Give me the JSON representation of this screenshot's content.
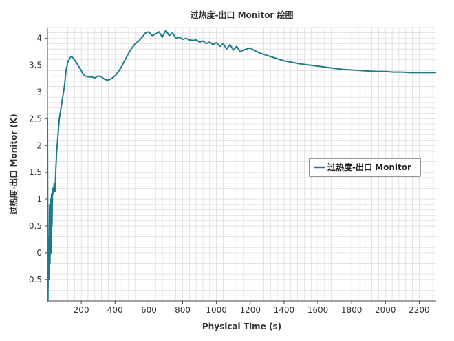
{
  "chart_data": {
    "type": "line",
    "title": "过热度-出口 Monitor 绘图",
    "xlabel": "Physical Time (s)",
    "ylabel": "过热度-出口 Monitor (K)",
    "xlim": [
      0,
      2300
    ],
    "ylim": [
      -0.9,
      4.2
    ],
    "x_ticks": [
      200,
      400,
      600,
      800,
      1000,
      1200,
      1400,
      1600,
      1800,
      2000,
      2200
    ],
    "x_tick_labels": [
      "200",
      "400",
      "600",
      "800",
      "1000",
      "1200",
      "1400",
      "1600",
      "1800",
      "2000",
      "2200"
    ],
    "y_ticks": [
      -0.5,
      0,
      0.5,
      1,
      1.5,
      2,
      2.5,
      3,
      3.5,
      4
    ],
    "y_tick_labels": [
      "-0.5",
      "0",
      "0.5",
      "1",
      "1.5",
      "2",
      "2.5",
      "3",
      "3.5",
      "4"
    ],
    "grid": true,
    "legend_position": "right",
    "colors": {
      "series": "#1f7a8c",
      "grid": "#d9d9d9",
      "axis": "#444444"
    },
    "series": [
      {
        "name": "过热度-出口 Monitor",
        "x": [
          0,
          3,
          6,
          9,
          12,
          15,
          18,
          21,
          24,
          27,
          30,
          35,
          40,
          45,
          50,
          55,
          60,
          65,
          70,
          80,
          90,
          100,
          110,
          120,
          130,
          140,
          150,
          160,
          170,
          180,
          190,
          200,
          210,
          220,
          240,
          260,
          280,
          300,
          320,
          340,
          360,
          380,
          400,
          420,
          440,
          460,
          480,
          500,
          520,
          540,
          560,
          580,
          600,
          620,
          640,
          660,
          680,
          700,
          720,
          740,
          760,
          780,
          800,
          820,
          840,
          860,
          880,
          900,
          920,
          940,
          960,
          980,
          1000,
          1020,
          1040,
          1060,
          1080,
          1100,
          1120,
          1140,
          1160,
          1180,
          1200,
          1220,
          1240,
          1260,
          1280,
          1300,
          1350,
          1400,
          1450,
          1500,
          1550,
          1600,
          1650,
          1700,
          1750,
          1800,
          1850,
          1900,
          1950,
          2000,
          2050,
          2100,
          2150,
          2200,
          2250,
          2300
        ],
        "y": [
          2.5,
          -0.9,
          0.3,
          -0.5,
          0.9,
          -0.2,
          1.0,
          0.0,
          1.1,
          0.5,
          1.2,
          1.1,
          1.3,
          1.15,
          1.6,
          1.9,
          2.1,
          2.3,
          2.5,
          2.7,
          2.9,
          3.1,
          3.4,
          3.55,
          3.62,
          3.66,
          3.64,
          3.6,
          3.55,
          3.5,
          3.45,
          3.4,
          3.33,
          3.3,
          3.28,
          3.28,
          3.26,
          3.3,
          3.28,
          3.23,
          3.22,
          3.25,
          3.3,
          3.38,
          3.48,
          3.6,
          3.72,
          3.82,
          3.9,
          3.95,
          4.02,
          4.1,
          4.12,
          4.05,
          4.08,
          4.12,
          4.02,
          4.15,
          4.05,
          4.1,
          4.0,
          4.02,
          3.98,
          4.0,
          3.97,
          3.96,
          3.97,
          3.93,
          3.95,
          3.9,
          3.93,
          3.88,
          3.92,
          3.85,
          3.9,
          3.8,
          3.88,
          3.78,
          3.85,
          3.75,
          3.78,
          3.8,
          3.82,
          3.78,
          3.75,
          3.72,
          3.7,
          3.68,
          3.63,
          3.58,
          3.55,
          3.52,
          3.5,
          3.48,
          3.46,
          3.44,
          3.42,
          3.41,
          3.4,
          3.39,
          3.38,
          3.38,
          3.37,
          3.37,
          3.36,
          3.36,
          3.36,
          3.36
        ]
      }
    ]
  }
}
